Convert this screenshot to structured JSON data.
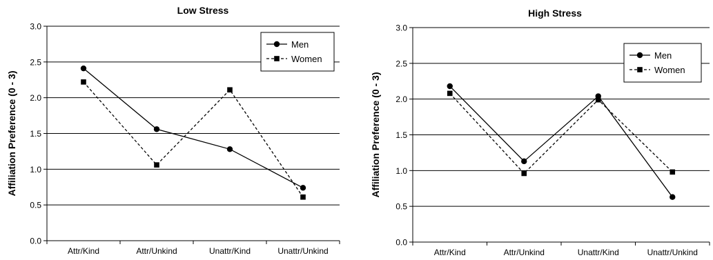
{
  "chart_data": [
    {
      "type": "line",
      "title": "Low Stress",
      "xlabel": "",
      "ylabel": "Affiliation Preference (0 - 3)",
      "categories": [
        "Attr/Kind",
        "Attr/Unkind",
        "Unattr/Kind",
        "Unattr/Unkind"
      ],
      "ylim": [
        0,
        3
      ],
      "yticks": [
        "0.0",
        "0.5",
        "1.0",
        "1.5",
        "2.0",
        "2.5",
        "3.0"
      ],
      "grid": true,
      "legend": "top-right",
      "series": [
        {
          "name": "Men",
          "values": [
            2.41,
            1.56,
            1.28,
            0.74
          ],
          "marker": "circle",
          "dash": "solid",
          "color": "#000000"
        },
        {
          "name": "Women",
          "values": [
            2.22,
            1.06,
            2.11,
            0.61
          ],
          "marker": "square",
          "dash": "dashed",
          "color": "#000000"
        }
      ]
    },
    {
      "type": "line",
      "title": "High Stress",
      "xlabel": "",
      "ylabel": "Affiliation Preference (0 - 3)",
      "categories": [
        "Attr/Kind",
        "Attr/Unkind",
        "Unattr/Kind",
        "Unattr/Unkind"
      ],
      "ylim": [
        0,
        3
      ],
      "yticks": [
        "0.0",
        "0.5",
        "1.0",
        "1.5",
        "2.0",
        "2.5",
        "3.0"
      ],
      "grid": true,
      "legend": "top-right",
      "series": [
        {
          "name": "Men",
          "values": [
            2.18,
            1.13,
            2.04,
            0.63
          ],
          "marker": "circle",
          "dash": "solid",
          "color": "#000000"
        },
        {
          "name": "Women",
          "values": [
            2.08,
            0.96,
            1.99,
            0.98
          ],
          "marker": "square",
          "dash": "dashed",
          "color": "#000000"
        }
      ]
    }
  ]
}
